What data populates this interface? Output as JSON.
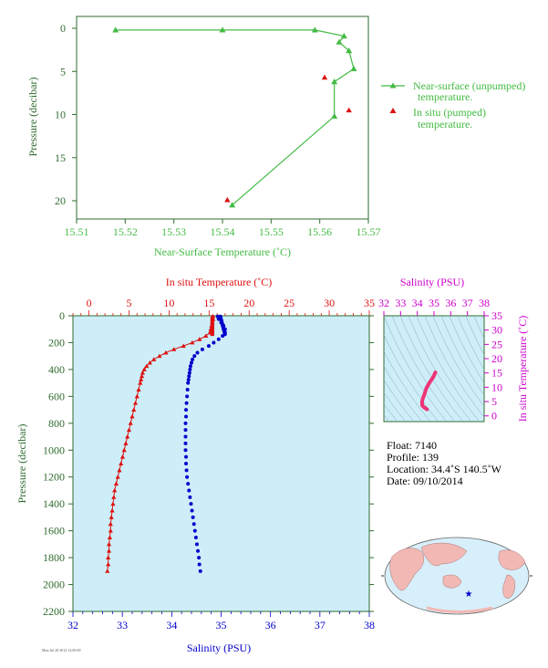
{
  "colors": {
    "near_surface": "#44bb44",
    "in_situ": "#dd1111",
    "salinity": "#0000cc",
    "ts_curve": "#ee3377",
    "axis_green": "#2f6b2f",
    "magenta": "#cc00cc",
    "panel_bg": "#cdeef8",
    "land": "#f2b8b4",
    "ocean": "#d7effa"
  },
  "chart_data": [
    {
      "id": "near_surface",
      "type": "scatter",
      "xlabel": "Near-Surface Temperature (˚C)",
      "ylabel": "Pressure (decibar)",
      "xlim": [
        15.51,
        15.57
      ],
      "ylim": [
        0,
        22
      ],
      "y_inverted": true,
      "xticks": [
        "15.51",
        "15.52",
        "15.53",
        "15.54",
        "15.55",
        "15.56",
        "15.57"
      ],
      "yticks": [
        "0",
        "5",
        "10",
        "15",
        "20"
      ],
      "series": [
        {
          "name": "Near-surface (unpumped) temperature.",
          "style": "line+triangle",
          "points": [
            [
              15.518,
              0.2
            ],
            [
              15.54,
              0.2
            ],
            [
              15.559,
              0.2
            ],
            [
              15.565,
              0.9
            ],
            [
              15.564,
              1.6
            ],
            [
              15.566,
              2.6
            ],
            [
              15.567,
              4.7
            ],
            [
              15.563,
              6.2
            ],
            [
              15.563,
              10.2
            ],
            [
              15.542,
              20.5
            ]
          ]
        },
        {
          "name": "In situ (pumped) temperature.",
          "style": "triangle",
          "points": [
            [
              15.561,
              5.7
            ],
            [
              15.566,
              9.5
            ],
            [
              15.541,
              19.9
            ]
          ]
        }
      ],
      "legend_position": "right"
    },
    {
      "id": "profile",
      "type": "line",
      "ylabel": "Pressure (decibar)",
      "ylim": [
        0,
        2200
      ],
      "y_inverted": true,
      "yticks": [
        "0",
        "200",
        "400",
        "600",
        "800",
        "1000",
        "1200",
        "1400",
        "1600",
        "1800",
        "2000",
        "2200"
      ],
      "top_axis": {
        "label": "In situ Temperature (˚C)",
        "range": [
          -2,
          35
        ],
        "ticks": [
          "0",
          "5",
          "10",
          "15",
          "20",
          "25",
          "30",
          "35"
        ]
      },
      "bottom_axis": {
        "label": "Salinity (PSU)",
        "range": [
          32,
          38
        ],
        "ticks": [
          "32",
          "33",
          "34",
          "35",
          "36",
          "37",
          "38"
        ]
      },
      "temperature": {
        "pressure": [
          5,
          25,
          50,
          75,
          100,
          125,
          150,
          175,
          200,
          225,
          250,
          275,
          300,
          325,
          350,
          375,
          400,
          425,
          450,
          475,
          500,
          550,
          600,
          650,
          700,
          750,
          800,
          850,
          900,
          950,
          1000,
          1050,
          1100,
          1150,
          1200,
          1250,
          1300,
          1350,
          1400,
          1450,
          1500,
          1550,
          1600,
          1650,
          1700,
          1750,
          1800,
          1850,
          1900
        ],
        "values": [
          15.5,
          15.5,
          15.4,
          15.3,
          15.2,
          15.1,
          14.6,
          13.8,
          12.9,
          11.8,
          10.6,
          9.6,
          8.8,
          8.1,
          7.6,
          7.2,
          6.9,
          6.7,
          6.6,
          6.5,
          6.4,
          6.2,
          6.0,
          5.8,
          5.6,
          5.4,
          5.2,
          5.0,
          4.8,
          4.6,
          4.4,
          4.2,
          4.0,
          3.8,
          3.6,
          3.4,
          3.2,
          3.1,
          3.0,
          2.9,
          2.8,
          2.7,
          2.7,
          2.6,
          2.5,
          2.5,
          2.4,
          2.4,
          2.3
        ]
      },
      "salinity": {
        "pressure": [
          5,
          25,
          50,
          75,
          100,
          125,
          150,
          175,
          200,
          225,
          250,
          275,
          300,
          325,
          350,
          375,
          400,
          425,
          450,
          475,
          500,
          550,
          600,
          650,
          700,
          750,
          800,
          850,
          900,
          950,
          1000,
          1050,
          1100,
          1150,
          1200,
          1250,
          1300,
          1350,
          1400,
          1450,
          1500,
          1550,
          1600,
          1650,
          1700,
          1750,
          1800,
          1850,
          1900
        ],
        "values": [
          34.93,
          34.95,
          35.0,
          35.05,
          35.08,
          35.08,
          35.03,
          34.95,
          34.85,
          34.75,
          34.62,
          34.52,
          34.46,
          34.42,
          34.4,
          34.38,
          34.37,
          34.36,
          34.35,
          34.34,
          34.33,
          34.32,
          34.31,
          34.3,
          34.29,
          34.29,
          34.28,
          34.28,
          34.28,
          34.28,
          34.28,
          34.29,
          34.29,
          34.3,
          34.31,
          34.33,
          34.35,
          34.37,
          34.39,
          34.41,
          34.43,
          34.45,
          34.47,
          34.49,
          34.51,
          34.53,
          34.55,
          34.56,
          34.58
        ]
      }
    },
    {
      "id": "ts_diagram",
      "type": "scatter",
      "xlabel": "Salinity (PSU)",
      "ylabel": "In situ Temperature (˚C)",
      "xlim": [
        32,
        38
      ],
      "ylim": [
        -2,
        35
      ],
      "xticks": [
        "32",
        "33",
        "34",
        "35",
        "36",
        "37",
        "38"
      ],
      "yticks": [
        "0",
        "5",
        "10",
        "15",
        "20",
        "25",
        "30",
        "35"
      ],
      "curve": [
        [
          35.08,
          15.2
        ],
        [
          34.95,
          13.5
        ],
        [
          34.75,
          11.8
        ],
        [
          34.55,
          9.8
        ],
        [
          34.42,
          7.5
        ],
        [
          34.36,
          6.5
        ],
        [
          34.3,
          5.5
        ],
        [
          34.28,
          4.6
        ],
        [
          34.3,
          3.6
        ],
        [
          34.4,
          3.0
        ],
        [
          34.5,
          2.6
        ],
        [
          34.58,
          2.3
        ]
      ]
    }
  ],
  "info": {
    "float": "Float:  7140",
    "profile": "Profile:  139",
    "location": "Location:  34.4˚S  140.5˚W",
    "date": "Date:  09/10/2014"
  },
  "small_print": "Mon Jul 28 2014 12:00:00"
}
